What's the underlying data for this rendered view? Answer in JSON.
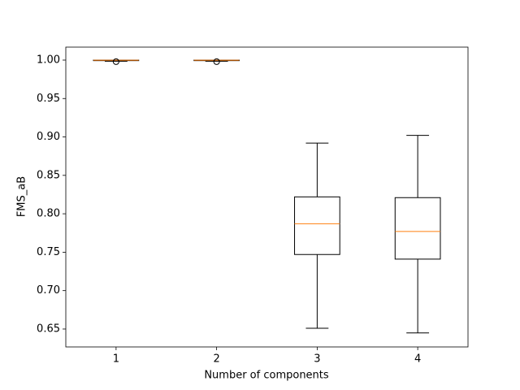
{
  "chart_data": {
    "type": "box",
    "xlabel": "Number of components",
    "ylabel": "FMS_aB",
    "categories": [
      "1",
      "2",
      "3",
      "4"
    ],
    "boxes": [
      {
        "min": 0.9985,
        "q1": 0.9993,
        "median": 0.9998,
        "q3": 1.0,
        "max": 1.0,
        "outliers": [
          0.998
        ]
      },
      {
        "min": 0.9985,
        "q1": 0.9993,
        "median": 0.9998,
        "q3": 1.0,
        "max": 1.0,
        "outliers": [
          0.998
        ]
      },
      {
        "min": 0.651,
        "q1": 0.747,
        "median": 0.787,
        "q3": 0.822,
        "max": 0.892,
        "outliers": []
      },
      {
        "min": 0.645,
        "q1": 0.741,
        "median": 0.777,
        "q3": 0.821,
        "max": 0.902,
        "outliers": []
      }
    ],
    "color": "#000000",
    "median_color": "#ff7f0e",
    "ylim": [
      0.6267,
      1.0169
    ],
    "yticks": [
      0.65,
      {
        "value": 0.7,
        "label": "0.70"
      },
      0.75,
      {
        "value": 0.8,
        "label": "0.80"
      },
      0.85,
      {
        "value": 0.9,
        "label": "0.90"
      },
      0.95,
      {
        "value": 1,
        "label": "1.00"
      }
    ]
  }
}
